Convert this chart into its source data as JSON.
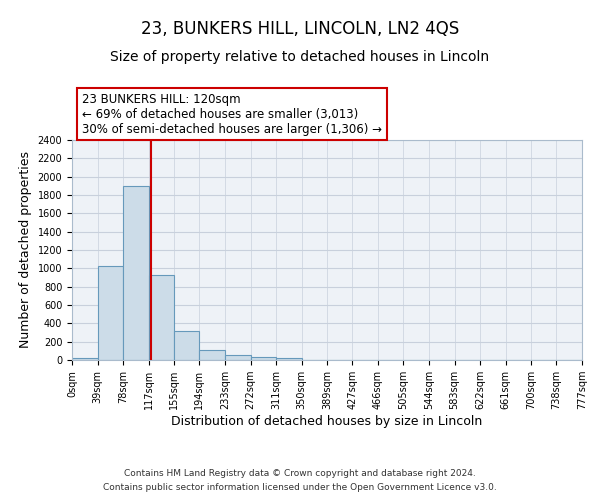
{
  "title": "23, BUNKERS HILL, LINCOLN, LN2 4QS",
  "subtitle": "Size of property relative to detached houses in Lincoln",
  "xlabel": "Distribution of detached houses by size in Lincoln",
  "ylabel": "Number of detached properties",
  "bar_edges": [
    0,
    39,
    78,
    117,
    155,
    194,
    233,
    272,
    311,
    350,
    389,
    427,
    466,
    505,
    544,
    583,
    622,
    661,
    700,
    738,
    777
  ],
  "bar_heights": [
    20,
    1025,
    1900,
    925,
    320,
    110,
    50,
    30,
    20,
    0,
    0,
    0,
    0,
    0,
    0,
    0,
    0,
    0,
    0,
    0
  ],
  "bar_color": "#ccdce8",
  "bar_edge_color": "#6699bb",
  "property_line_x": 120,
  "property_line_color": "#cc0000",
  "ylim": [
    0,
    2400
  ],
  "yticks": [
    0,
    200,
    400,
    600,
    800,
    1000,
    1200,
    1400,
    1600,
    1800,
    2000,
    2200,
    2400
  ],
  "xtick_labels": [
    "0sqm",
    "39sqm",
    "78sqm",
    "117sqm",
    "155sqm",
    "194sqm",
    "233sqm",
    "272sqm",
    "311sqm",
    "350sqm",
    "389sqm",
    "427sqm",
    "466sqm",
    "505sqm",
    "544sqm",
    "583sqm",
    "622sqm",
    "661sqm",
    "700sqm",
    "738sqm",
    "777sqm"
  ],
  "annotation_line1": "23 BUNKERS HILL: 120sqm",
  "annotation_line2": "← 69% of detached houses are smaller (3,013)",
  "annotation_line3": "30% of semi-detached houses are larger (1,306) →",
  "footer_line1": "Contains HM Land Registry data © Crown copyright and database right 2024.",
  "footer_line2": "Contains public sector information licensed under the Open Government Licence v3.0.",
  "bg_color": "#ffffff",
  "plot_bg_color": "#eef2f7",
  "grid_color": "#c8d0dc",
  "title_fontsize": 12,
  "subtitle_fontsize": 10,
  "axis_label_fontsize": 9,
  "tick_fontsize": 7,
  "footer_fontsize": 6.5,
  "annotation_fontsize": 8.5
}
